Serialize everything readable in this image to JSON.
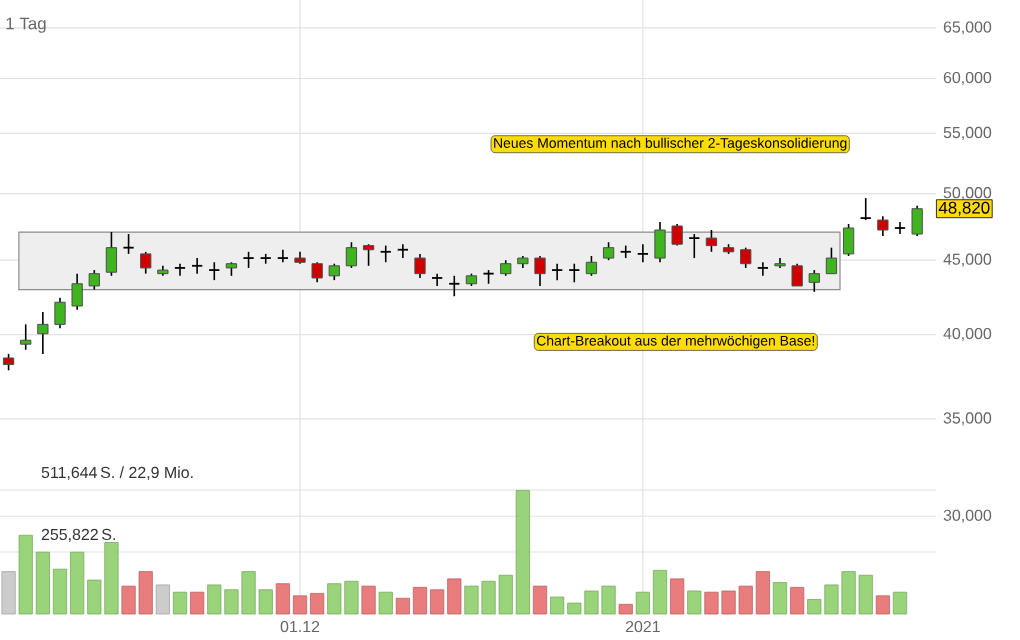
{
  "chart_data": [
    {
      "type": "candlestick",
      "subtitle": "1 Tag",
      "categories": [
        null,
        null,
        null,
        null,
        null,
        null,
        null,
        null,
        null,
        null,
        null,
        null,
        null,
        null,
        null,
        null,
        null,
        "01.12",
        null,
        null,
        null,
        null,
        null,
        null,
        null,
        null,
        null,
        null,
        null,
        null,
        null,
        null,
        null,
        null,
        null,
        null,
        null,
        "2021",
        null,
        null,
        null,
        null,
        null,
        null,
        null,
        null,
        null,
        null,
        null,
        null,
        null,
        null,
        null,
        null
      ],
      "ohlc": [
        [
          38550,
          38800,
          37800,
          38150
        ],
        [
          39400,
          40650,
          39050,
          39650
        ],
        [
          40050,
          41450,
          38800,
          40650
        ],
        [
          40650,
          42400,
          40400,
          42100
        ],
        [
          41850,
          44050,
          41600,
          43350
        ],
        [
          43200,
          44300,
          42950,
          44050
        ],
        [
          44150,
          47050,
          43900,
          45900
        ],
        [
          45900,
          46900,
          45450,
          45900
        ],
        [
          45450,
          45600,
          44050,
          44450
        ],
        [
          44050,
          44600,
          43900,
          44300
        ],
        [
          44450,
          44750,
          43900,
          44450
        ],
        [
          44600,
          45150,
          44050,
          44600
        ],
        [
          44300,
          44850,
          43600,
          44300
        ],
        [
          44450,
          44850,
          43900,
          44750
        ],
        [
          45150,
          45600,
          44450,
          45150
        ],
        [
          45150,
          45450,
          44750,
          45150
        ],
        [
          45150,
          45750,
          44850,
          45150
        ],
        [
          45150,
          45600,
          44750,
          44850
        ],
        [
          44750,
          44850,
          43450,
          43750
        ],
        [
          43900,
          44750,
          43600,
          44600
        ],
        [
          44600,
          46300,
          44450,
          45900
        ],
        [
          46050,
          46150,
          44600,
          45750
        ],
        [
          45600,
          46050,
          44850,
          45600
        ],
        [
          45750,
          46150,
          45150,
          45750
        ],
        [
          45150,
          45450,
          43750,
          44050
        ],
        [
          43750,
          44050,
          43200,
          43750
        ],
        [
          43350,
          43900,
          42500,
          43350
        ],
        [
          43350,
          44050,
          43200,
          43900
        ],
        [
          44050,
          44300,
          43350,
          44050
        ],
        [
          44050,
          45000,
          43900,
          44750
        ],
        [
          44750,
          45300,
          44450,
          45150
        ],
        [
          45150,
          45300,
          43200,
          44050
        ],
        [
          44300,
          44750,
          43600,
          44300
        ],
        [
          44300,
          44750,
          43450,
          44300
        ],
        [
          44050,
          45300,
          43900,
          44850
        ],
        [
          45150,
          46300,
          45000,
          45900
        ],
        [
          45600,
          46050,
          45150,
          45600
        ],
        [
          45450,
          46150,
          44850,
          45450
        ],
        [
          45150,
          47800,
          44850,
          47200
        ],
        [
          47500,
          47650,
          46050,
          46150
        ],
        [
          46600,
          46900,
          45150,
          46600
        ],
        [
          46600,
          47200,
          45600,
          46050
        ],
        [
          45900,
          46150,
          45450,
          45600
        ],
        [
          45750,
          45900,
          44450,
          44750
        ],
        [
          44450,
          44850,
          43900,
          44450
        ],
        [
          44600,
          45150,
          44450,
          44750
        ],
        [
          44600,
          44750,
          43200,
          43200
        ],
        [
          43450,
          44300,
          42800,
          44050
        ],
        [
          44050,
          45900,
          44050,
          45150
        ],
        [
          45450,
          47650,
          45300,
          47350
        ],
        [
          48100,
          49650,
          47950,
          48100
        ],
        [
          47950,
          48250,
          46750,
          47200
        ],
        [
          47350,
          47800,
          46900,
          47350
        ],
        [
          46900,
          49050,
          46750,
          48820
        ]
      ],
      "log": true,
      "ylim": [
        25700,
        67950
      ],
      "yticks": [
        {
          "value": 30000,
          "label": "30,000"
        },
        {
          "value": 35000,
          "label": "35,000"
        },
        {
          "value": 40000,
          "label": "40,000"
        },
        {
          "value": 45000,
          "label": "45,000"
        },
        {
          "value": 50000,
          "label": "50,000"
        },
        {
          "value": 55000,
          "label": "55,000"
        },
        {
          "value": 60000,
          "label": "60,000"
        },
        {
          "value": 65000,
          "label": "65,000"
        }
      ],
      "grid": true,
      "bands": [
        {
          "axis": "y",
          "from": 42950,
          "to": 47050,
          "color": "#eeeeee"
        }
      ],
      "annotations": [
        "Neues Momentum nach bullischer 2-Tageskonsolidierung",
        "Chart-Breakout aus der mehrwöchigen Base!",
        {
          "text": "48,820",
          "y": 48820
        }
      ]
    },
    {
      "type": "bar",
      "categories": [
        null,
        null,
        null,
        null,
        null,
        null,
        null,
        null,
        null,
        null,
        null,
        null,
        null,
        null,
        null,
        null,
        null,
        "01.12",
        null,
        null,
        null,
        null,
        null,
        null,
        null,
        null,
        null,
        null,
        null,
        null,
        null,
        null,
        null,
        null,
        null,
        null,
        null,
        "2021",
        null,
        null,
        null,
        null,
        null,
        null,
        null,
        null,
        null,
        null,
        null,
        null,
        null,
        null,
        null,
        null
      ],
      "values": [
        175000,
        325000,
        255000,
        185000,
        255000,
        140000,
        295000,
        115000,
        175000,
        120000,
        90000,
        90000,
        120000,
        100000,
        175000,
        100000,
        125000,
        75000,
        85000,
        125000,
        135000,
        115000,
        90000,
        65000,
        110000,
        100000,
        145000,
        115000,
        135000,
        160000,
        510000,
        115000,
        70000,
        45000,
        95000,
        115000,
        40000,
        90000,
        180000,
        145000,
        95000,
        90000,
        95000,
        115000,
        175000,
        130000,
        110000,
        60000,
        120000,
        175000,
        160000,
        75000,
        90000,
        null
      ],
      "colors": [
        "#cccccc",
        "#99d47b",
        "#99d47b",
        "#99d47b",
        "#99d47b",
        "#99d47b",
        "#99d47b",
        "#e97c7c",
        "#e97c7c",
        "#cccccc",
        "#99d47b",
        "#e97c7c",
        "#99d47b",
        "#99d47b",
        "#99d47b",
        "#99d47b",
        "#e97c7c",
        "#e97c7c",
        "#e97c7c",
        "#99d47b",
        "#99d47b",
        "#e97c7c",
        "#99d47b",
        "#e97c7c",
        "#e97c7c",
        "#e97c7c",
        "#e97c7c",
        "#99d47b",
        "#99d47b",
        "#99d47b",
        "#99d47b",
        "#e97c7c",
        "#99d47b",
        "#99d47b",
        "#99d47b",
        "#99d47b",
        "#e97c7c",
        "#99d47b",
        "#99d47b",
        "#e97c7c",
        "#99d47b",
        "#e97c7c",
        "#e97c7c",
        "#e97c7c",
        "#e97c7c",
        "#99d47b",
        "#e97c7c",
        "#99d47b",
        "#99d47b",
        "#99d47b",
        "#99d47b",
        "#e97c7c",
        "#99d47b",
        "#99d47b"
      ],
      "ylim": [
        0,
        511644
      ],
      "yticks": [
        {
          "value": 255822,
          "label": "255,822"
        },
        {
          "value": 511644,
          "label": "511,644"
        }
      ],
      "annotations": [
        "S.",
        "S. / 22,9 Mio."
      ],
      "grid": "y",
      "tick_labels": "y"
    }
  ]
}
